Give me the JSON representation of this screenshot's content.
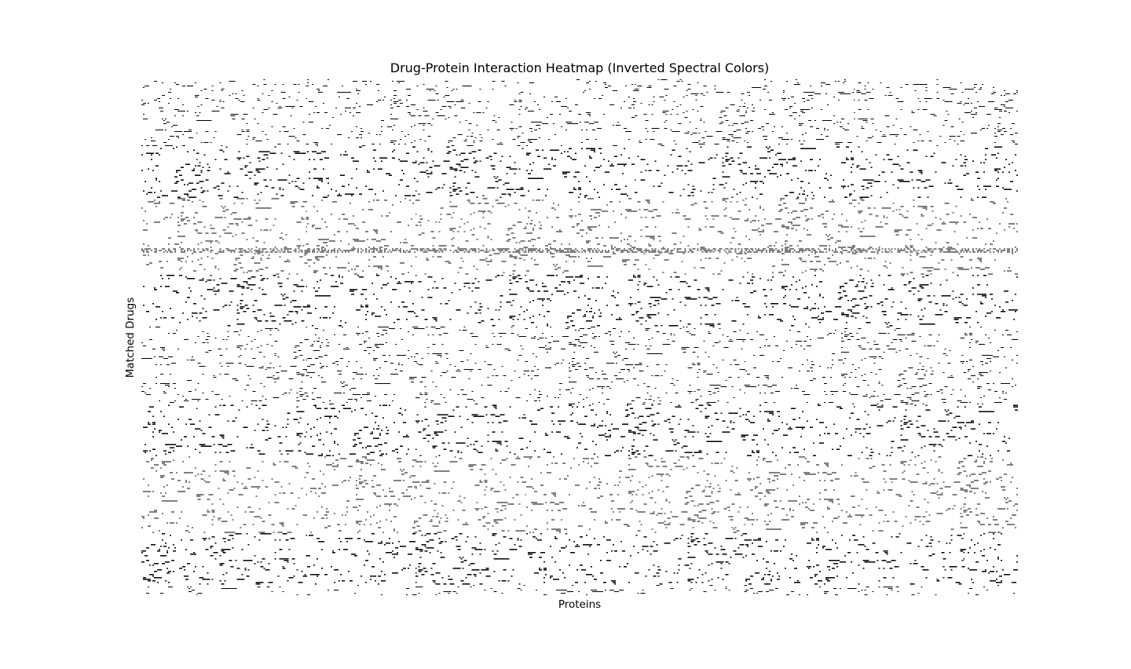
{
  "chart_data": {
    "type": "heatmap",
    "title": "Drug-Protein Interaction Heatmap (Inverted Spectral Colors)",
    "xlabel": "Proteins",
    "ylabel": "Matched Drugs",
    "xticks": [],
    "yticks": [],
    "axis_frame": false,
    "grid": false,
    "colorbar": false,
    "values": [
      0,
      1
    ],
    "value_colors": [
      "#ffffff",
      "#000000"
    ],
    "n_rows": 330,
    "n_cols": 560,
    "interaction_density": 0.035,
    "dense_rows": [
      108,
      109,
      110
    ],
    "dense_row_density": 0.55,
    "dense_cols": [
      20,
      21,
      22,
      23,
      24,
      25,
      26,
      27,
      28,
      29,
      30,
      31,
      32,
      33,
      34,
      35,
      36,
      37,
      38,
      39,
      40,
      41,
      42,
      43,
      44,
      45,
      46,
      47,
      48,
      49,
      50,
      51,
      52,
      53,
      54,
      55,
      56,
      57,
      58,
      59,
      60,
      61,
      62,
      63,
      64,
      65,
      66,
      67,
      68,
      69,
      70,
      71,
      72,
      73,
      74,
      75,
      76,
      77,
      78,
      79,
      80,
      81,
      82,
      83,
      84,
      85,
      86,
      87,
      88,
      89,
      90,
      91,
      92,
      93,
      94,
      95,
      96,
      97,
      98,
      99,
      100,
      101,
      102,
      103,
      104,
      105,
      106,
      107,
      108,
      109,
      110,
      111,
      112,
      113,
      114,
      115,
      116,
      117,
      118,
      119,
      120,
      121,
      122,
      123,
      124,
      125,
      126,
      127,
      128,
      129,
      130,
      131,
      132,
      133,
      134,
      135,
      136,
      137,
      138,
      139,
      140,
      141,
      142,
      143,
      144,
      145,
      146,
      147,
      148,
      149,
      150,
      151,
      152,
      153,
      154,
      155,
      156,
      157,
      158,
      159,
      160,
      161,
      162,
      163,
      164,
      165,
      166,
      167,
      168,
      169,
      170,
      171,
      172,
      173,
      174,
      175,
      176,
      177,
      178,
      179,
      180,
      181,
      182,
      183,
      184,
      185,
      186,
      187,
      188,
      189,
      190,
      191,
      192,
      193,
      194,
      195,
      196,
      197,
      198,
      199,
      200,
      201,
      202,
      203,
      204,
      205,
      206,
      207,
      208,
      209,
      210,
      211,
      212,
      213,
      214,
      215,
      216,
      217,
      218,
      219,
      220,
      221,
      222,
      223,
      224,
      225,
      226,
      227,
      228,
      229,
      230,
      231,
      232,
      233,
      234,
      235,
      236,
      237,
      238,
      239,
      240,
      241,
      242,
      243,
      244,
      245,
      246,
      247,
      248,
      249,
      250,
      251,
      252,
      253,
      254,
      255,
      256,
      257,
      258,
      259,
      260,
      261,
      262,
      263,
      264,
      265,
      266,
      267,
      268,
      269,
      270,
      271,
      272,
      273,
      274,
      275,
      276,
      277,
      278,
      279,
      280,
      281,
      282,
      283,
      284,
      285,
      286,
      287,
      288,
      289,
      290,
      291,
      292,
      293,
      294,
      295,
      296,
      297,
      298,
      299,
      300,
      301,
      302,
      303,
      304,
      305,
      306,
      307,
      308,
      309,
      310,
      311,
      312,
      313,
      314,
      315,
      316,
      317,
      318,
      319,
      320,
      321,
      322,
      323,
      324,
      325,
      326,
      327,
      328,
      329,
      330,
      331,
      332,
      333,
      334,
      335,
      336,
      337,
      338,
      339,
      340,
      341,
      342,
      343,
      344,
      345,
      346,
      347,
      348,
      349,
      350,
      351,
      352,
      353,
      354,
      355,
      356,
      357,
      358,
      359,
      360,
      361,
      362,
      363,
      364,
      365,
      366,
      367,
      368,
      369,
      370,
      371,
      372,
      373,
      374,
      375,
      376,
      377,
      378,
      379,
      380,
      381,
      382,
      383,
      384,
      385,
      386,
      387,
      388,
      389,
      390,
      391,
      392,
      393,
      394,
      395,
      396,
      397,
      398,
      399,
      400,
      401,
      402,
      403,
      404,
      405,
      406,
      407,
      408,
      409,
      410,
      411,
      412,
      413,
      414,
      415,
      416,
      417,
      418,
      419,
      420,
      421,
      422,
      423,
      424,
      425,
      426,
      427,
      428,
      429,
      430,
      431,
      432,
      433,
      434,
      435,
      436,
      437,
      438,
      439,
      440,
      441,
      442,
      443,
      444,
      445,
      446,
      447,
      448,
      449,
      450,
      451,
      452,
      453,
      454,
      455,
      456,
      457,
      458,
      459,
      460,
      461,
      462,
      463,
      464,
      465,
      466,
      467,
      468,
      469,
      470,
      471,
      472,
      473,
      474,
      475,
      476,
      477,
      478,
      479,
      480,
      481,
      482,
      483,
      484,
      485,
      486,
      487,
      488,
      489,
      490,
      491,
      492,
      493,
      494,
      495,
      496,
      497,
      498,
      499,
      500,
      501,
      502,
      503,
      504,
      505,
      506,
      507,
      508,
      509,
      510,
      511,
      512,
      513,
      514,
      515,
      516,
      517,
      518,
      519,
      520,
      521,
      522,
      523,
      524,
      525,
      526,
      527,
      528,
      529,
      530,
      531,
      532,
      533,
      534,
      535,
      536,
      537,
      538,
      539,
      540,
      541,
      542,
      543,
      544,
      545,
      546,
      547,
      548,
      549,
      550,
      551,
      552,
      553,
      554,
      555,
      556,
      557,
      558,
      559
    ],
    "dense_col_density": 0.035
  }
}
